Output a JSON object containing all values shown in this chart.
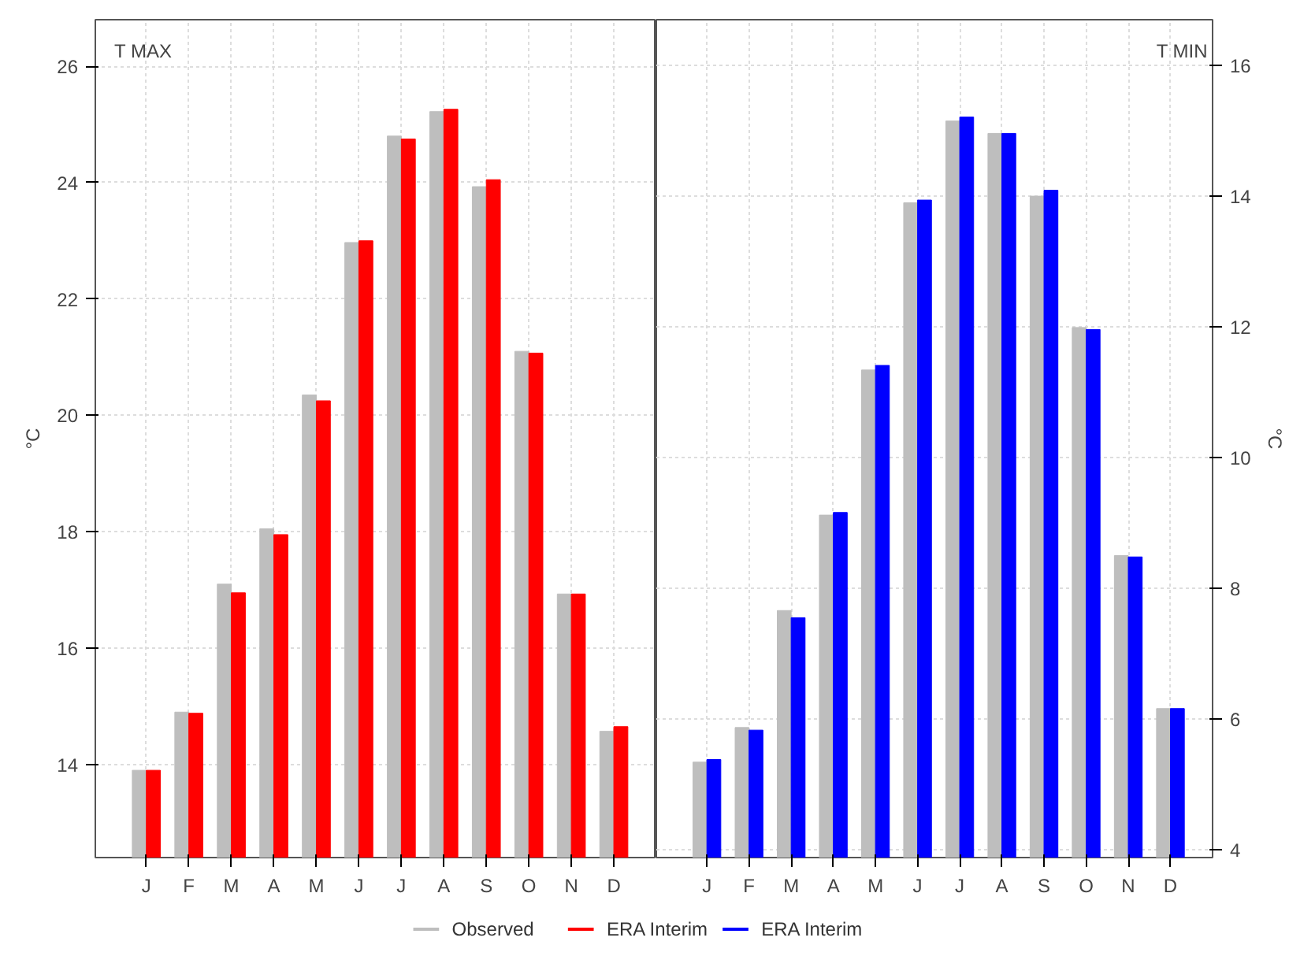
{
  "chart_data": [
    {
      "type": "bar",
      "title": "T MAX",
      "ylabel": "°C",
      "categories": [
        "J",
        "F",
        "M",
        "A",
        "M",
        "J",
        "J",
        "A",
        "S",
        "O",
        "N",
        "D"
      ],
      "series": [
        {
          "name": "Observed",
          "color": "#bebebe",
          "values": [
            13.9,
            14.9,
            17.1,
            18.05,
            20.35,
            22.97,
            24.8,
            25.22,
            23.93,
            21.1,
            16.93,
            14.57
          ]
        },
        {
          "name": "ERA Interim",
          "color": "#ff0000",
          "values": [
            13.9,
            14.88,
            16.95,
            17.95,
            20.25,
            23.0,
            24.75,
            25.26,
            24.05,
            21.07,
            16.93,
            14.65
          ]
        }
      ],
      "ylim": [
        12.4,
        26.8
      ],
      "yticks": [
        14,
        16,
        18,
        20,
        22,
        24,
        26
      ],
      "grid": true,
      "legend": "bottom"
    },
    {
      "type": "bar",
      "title": "T MIN",
      "ylabel": "°C",
      "categories": [
        "J",
        "F",
        "M",
        "A",
        "M",
        "J",
        "J",
        "A",
        "S",
        "O",
        "N",
        "D"
      ],
      "series": [
        {
          "color": "#bebebe",
          "values": [
            5.34,
            5.87,
            7.66,
            9.12,
            11.34,
            13.9,
            15.15,
            14.96,
            14.0,
            11.99,
            8.5,
            6.16
          ]
        },
        {
          "name": "ERA Interim",
          "color": "#0000ff",
          "values": [
            5.38,
            5.83,
            7.55,
            9.16,
            11.41,
            13.94,
            15.21,
            14.96,
            14.09,
            11.96,
            8.48,
            6.16
          ]
        }
      ],
      "ylim": [
        3.88,
        16.7
      ],
      "yticks": [
        4,
        6,
        8,
        10,
        12,
        14,
        16
      ],
      "grid": true,
      "legend": "bottom"
    }
  ]
}
